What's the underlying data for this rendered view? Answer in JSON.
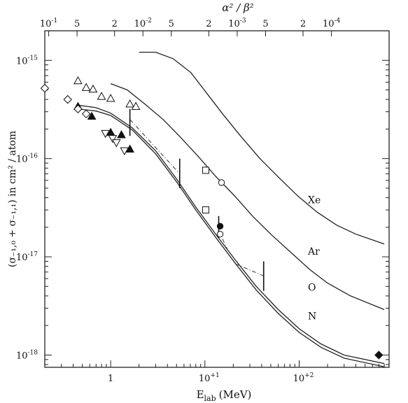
{
  "chart_data": {
    "type": "line",
    "x_axis": {
      "label": "E",
      "label_sub": "lab",
      "label_unit": "(MeV)",
      "scale": "log",
      "range": [
        0.2,
        900
      ],
      "ticks": [
        {
          "value": 1,
          "label": "1"
        },
        {
          "value": 10,
          "label": "10",
          "sup": "+1"
        },
        {
          "value": 100,
          "label": "10",
          "sup": "+2"
        }
      ]
    },
    "x2_axis": {
      "label": "α² / β²",
      "ticks": [
        {
          "value": 0.22,
          "label": "10",
          "sup": "-1"
        },
        {
          "value": 0.44,
          "label": "5"
        },
        {
          "value": 1.1,
          "label": "2"
        },
        {
          "value": 2.2,
          "label": "10",
          "sup": "-2"
        },
        {
          "value": 4.4,
          "label": "5"
        },
        {
          "value": 11,
          "label": "2"
        },
        {
          "value": 22,
          "label": "10",
          "sup": "-3"
        },
        {
          "value": 44,
          "label": "5"
        },
        {
          "value": 110,
          "label": "2"
        },
        {
          "value": 220,
          "label": "10",
          "sup": "-4"
        }
      ]
    },
    "y_axis": {
      "label": "(σ₋₁,₀ + σ₋₁,₁) in cm² / atom",
      "scale": "log",
      "range": [
        7.5e-19,
        2e-15
      ],
      "ticks": [
        {
          "value": 1e-15,
          "label": "10",
          "sup": "-15"
        },
        {
          "value": 1e-16,
          "label": "10",
          "sup": "-16"
        },
        {
          "value": 1e-17,
          "label": "10",
          "sup": "-17"
        },
        {
          "value": 1e-18,
          "label": "10",
          "sup": "-18"
        }
      ]
    },
    "series": [
      {
        "name": "Xe",
        "x": [
          2.0,
          3.0,
          4.6,
          7.1,
          10.4,
          15.4,
          24,
          38,
          61,
          97,
          155,
          250,
          400,
          800
        ],
        "y": [
          1.21e-15,
          1.21e-15,
          1.04e-15,
          7.5e-16,
          4.66e-16,
          2.85e-16,
          1.69e-16,
          1.01e-16,
          6.4e-17,
          4.15e-17,
          2.85e-17,
          2.1e-17,
          1.7e-17,
          1.35e-17
        ]
      },
      {
        "name": "Ar",
        "x": [
          1.0,
          1.5,
          2.3,
          3.6,
          5.5,
          8.5,
          13,
          21,
          32,
          50,
          80,
          130,
          200,
          350,
          800
        ],
        "y": [
          5.8e-16,
          5e-16,
          3.6e-16,
          2.5e-16,
          1.65e-16,
          1.05e-16,
          6.6e-17,
          4.1e-17,
          2.6e-17,
          1.7e-17,
          1.13e-17,
          7.4e-18,
          5.4e-18,
          4e-18,
          2.9e-18
        ]
      },
      {
        "name": "O",
        "x": [
          0.45,
          0.7,
          1.0,
          1.7,
          3.0,
          5.0,
          8.0,
          13,
          21,
          35,
          60,
          100,
          170,
          300,
          800
        ],
        "y": [
          3.5e-16,
          3.3e-16,
          2.9e-16,
          2.05e-16,
          1.2e-16,
          6.2e-17,
          3.2e-17,
          1.7e-17,
          9.3e-18,
          5e-18,
          2.9e-18,
          1.85e-18,
          1.3e-18,
          1e-18,
          8.2e-19
        ]
      },
      {
        "name": "N",
        "x": [
          0.45,
          0.7,
          1.0,
          1.7,
          3.0,
          5.0,
          8.0,
          13,
          21,
          35,
          60,
          100,
          170,
          300,
          800
        ],
        "y": [
          3.2e-16,
          3.05e-16,
          2.75e-16,
          1.95e-16,
          1.12e-16,
          5.8e-17,
          3e-17,
          1.58e-17,
          8.6e-18,
          4.6e-18,
          2.65e-18,
          1.7e-18,
          1.2e-18,
          9.3e-19,
          7.6e-19
        ]
      }
    ],
    "dashdot_segments": [
      {
        "x": [
          1.6,
          5.4
        ],
        "y": [
          2.5e-16,
          7e-17
        ]
      },
      {
        "x": [
          14,
          18
        ],
        "y": [
          1.85e-17,
          1.1e-17
        ]
      },
      {
        "x": [
          21,
          42
        ],
        "y": [
          8.5e-18,
          6.4e-18
        ]
      }
    ],
    "error_bars": [
      {
        "x": 1.6,
        "y_low": 1.7e-16,
        "y_high": 3.2e-16
      },
      {
        "x": 5.4,
        "y_low": 5e-17,
        "y_high": 1e-16
      },
      {
        "x": 14,
        "y_low": 1.55e-17,
        "y_high": 2.6e-17
      },
      {
        "x": 42,
        "y_low": 4.5e-18,
        "y_high": 9e-18
      }
    ],
    "markers": [
      {
        "symbol": "triangle-up-open",
        "x": [
          0.45,
          0.55,
          0.65,
          0.8,
          1.0,
          1.6,
          1.85
        ],
        "y": [
          6.2e-16,
          5.3e-16,
          5.1e-16,
          4.3e-16,
          4.1e-16,
          3.6e-16,
          3.4e-16
        ]
      },
      {
        "symbol": "triangle-up-filled",
        "x": [
          0.45,
          0.63,
          1.0,
          1.3,
          1.6
        ],
        "y": [
          3.4e-16,
          2.7e-16,
          1.85e-16,
          1.75e-16,
          1.25e-16
        ]
      },
      {
        "symbol": "triangle-down-open",
        "x": [
          0.88,
          1.05,
          1.15,
          1.4
        ],
        "y": [
          1.8e-16,
          1.6e-16,
          1.45e-16,
          1.2e-16
        ]
      },
      {
        "symbol": "diamond-open",
        "x": [
          0.2,
          0.35,
          0.45,
          0.55
        ],
        "y": [
          5.2e-16,
          4e-16,
          3.2e-16,
          2.85e-16
        ]
      },
      {
        "symbol": "square-open",
        "x": [
          10.2,
          10.2
        ],
        "y": [
          7.6e-17,
          3e-17
        ]
      },
      {
        "symbol": "circle-open",
        "x": [
          15,
          14.5
        ],
        "y": [
          5.7e-17,
          1.7e-17
        ]
      },
      {
        "symbol": "circle-filled",
        "x": [
          14.5
        ],
        "y": [
          2.05e-17
        ]
      },
      {
        "symbol": "diamond-filled",
        "x": [
          700
        ],
        "y": [
          1e-18
        ]
      }
    ]
  }
}
